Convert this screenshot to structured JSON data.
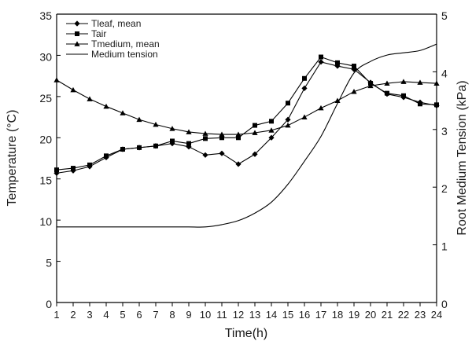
{
  "chart_data": {
    "type": "line",
    "xlabel": "Time(h)",
    "ylabel_left": "Temperature (°C)",
    "ylabel_right": "Root Medium Tension (kPa)",
    "xlim": [
      1,
      24
    ],
    "ylim_left": [
      0,
      35
    ],
    "ylim_right": [
      0,
      5
    ],
    "x_ticks": [
      1,
      2,
      3,
      4,
      5,
      6,
      7,
      8,
      9,
      10,
      11,
      12,
      13,
      14,
      15,
      16,
      17,
      18,
      19,
      20,
      21,
      22,
      23,
      24
    ],
    "y_left_ticks": [
      0,
      5,
      10,
      15,
      20,
      25,
      30,
      35
    ],
    "y_right_ticks": [
      0,
      1,
      2,
      3,
      4,
      5
    ],
    "grid": false,
    "legend_position": "top-left",
    "x": [
      1,
      2,
      3,
      4,
      5,
      6,
      7,
      8,
      9,
      10,
      11,
      12,
      13,
      14,
      15,
      16,
      17,
      18,
      19,
      20,
      21,
      22,
      23,
      24
    ],
    "series": [
      {
        "name": "Tleaf, mean",
        "axis": "left",
        "marker": "diamond",
        "color": "#000000",
        "values": [
          15.7,
          16.0,
          16.5,
          17.6,
          18.6,
          18.8,
          19.0,
          19.3,
          18.9,
          17.9,
          18.1,
          16.8,
          18.0,
          20.0,
          22.2,
          26.0,
          29.2,
          28.7,
          28.3,
          26.7,
          25.3,
          24.9,
          24.3,
          23.9
        ]
      },
      {
        "name": "Tair",
        "axis": "left",
        "marker": "square",
        "color": "#000000",
        "values": [
          16.1,
          16.3,
          16.7,
          17.8,
          18.6,
          18.8,
          19.0,
          19.6,
          19.3,
          19.9,
          20.0,
          20.0,
          21.5,
          22.0,
          24.2,
          27.2,
          29.8,
          29.1,
          28.7,
          26.6,
          25.4,
          25.1,
          24.1,
          24.0
        ]
      },
      {
        "name": "Tmedium, mean",
        "axis": "left",
        "marker": "triangle",
        "color": "#000000",
        "values": [
          27.0,
          25.8,
          24.7,
          23.8,
          23.0,
          22.2,
          21.6,
          21.1,
          20.7,
          20.5,
          20.4,
          20.4,
          20.6,
          20.9,
          21.5,
          22.5,
          23.6,
          24.5,
          25.6,
          26.3,
          26.6,
          26.8,
          26.7,
          26.6
        ]
      },
      {
        "name": "Medium tension",
        "axis": "right",
        "marker": "none",
        "color": "#000000",
        "values": [
          1.31,
          1.31,
          1.31,
          1.31,
          1.31,
          1.31,
          1.31,
          1.31,
          1.31,
          1.31,
          1.35,
          1.42,
          1.55,
          1.74,
          2.05,
          2.45,
          2.88,
          3.45,
          3.98,
          4.18,
          4.29,
          4.33,
          4.37,
          4.48
        ]
      }
    ]
  }
}
